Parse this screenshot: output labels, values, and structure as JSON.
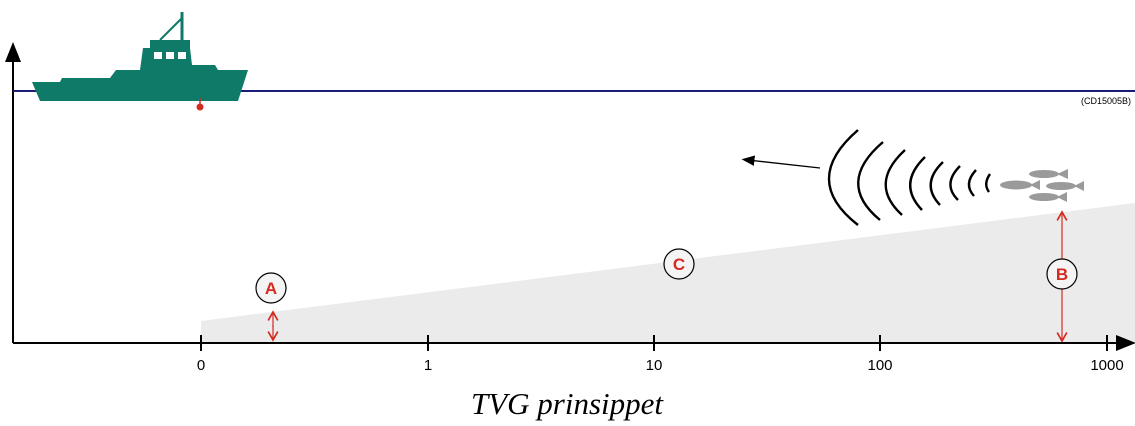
{
  "diagram": {
    "code": "(CD15005B)",
    "axis_ticks": [
      "0",
      "1",
      "10",
      "100",
      "1000"
    ],
    "labels": {
      "a": "A",
      "b": "B",
      "c": "C"
    },
    "caption": "TVG prinsippet"
  }
}
